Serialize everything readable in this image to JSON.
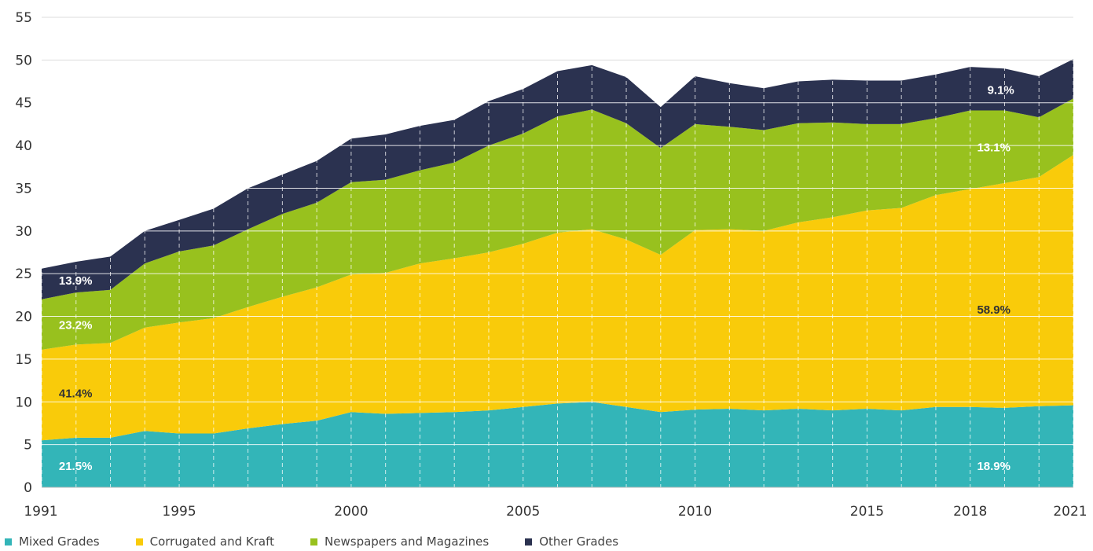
{
  "chart_data": {
    "type": "area",
    "stacked": true,
    "title": "",
    "xlabel": "",
    "ylabel": "",
    "x": [
      1991,
      1992,
      1993,
      1994,
      1995,
      1996,
      1997,
      1998,
      1999,
      2000,
      2001,
      2002,
      2003,
      2004,
      2005,
      2006,
      2007,
      2008,
      2009,
      2010,
      2011,
      2012,
      2013,
      2014,
      2015,
      2016,
      2017,
      2018,
      2019,
      2020,
      2021
    ],
    "x_ticks": [
      "1991",
      "1995",
      "2000",
      "2005",
      "2010",
      "2015",
      "2018",
      "2021"
    ],
    "y_ticks": [
      "0",
      "5",
      "10",
      "15",
      "20",
      "25",
      "30",
      "35",
      "40",
      "45",
      "50",
      "55"
    ],
    "ylim": [
      0,
      55
    ],
    "grid": true,
    "legend_position": "bottom-left",
    "series": [
      {
        "name": "Mixed Grades",
        "color": "#33b5b8",
        "values": [
          5.5,
          5.8,
          5.8,
          6.6,
          6.3,
          6.3,
          6.9,
          7.4,
          7.8,
          8.8,
          8.6,
          8.7,
          8.8,
          9.0,
          9.4,
          9.8,
          10.0,
          9.4,
          8.8,
          9.1,
          9.2,
          9.0,
          9.2,
          9.0,
          9.2,
          9.0,
          9.4,
          9.4,
          9.3,
          9.5,
          9.6
        ]
      },
      {
        "name": "Corrugated and Kraft",
        "color": "#f9cb0a",
        "values": [
          10.6,
          10.9,
          11.1,
          12.1,
          13.0,
          13.5,
          14.2,
          14.9,
          15.6,
          16.1,
          16.5,
          17.5,
          18.0,
          18.5,
          19.1,
          20.0,
          20.2,
          19.6,
          18.4,
          21.0,
          21.0,
          21.0,
          21.8,
          22.6,
          23.2,
          23.7,
          24.8,
          25.5,
          26.3,
          26.8,
          29.3
        ]
      },
      {
        "name": "Newspapers and Magazines",
        "color": "#98c11e",
        "values": [
          5.9,
          6.1,
          6.2,
          7.5,
          8.3,
          8.5,
          9.1,
          9.7,
          9.9,
          10.8,
          10.9,
          10.9,
          11.2,
          12.5,
          12.9,
          13.6,
          14.0,
          13.6,
          12.5,
          12.4,
          12.0,
          11.8,
          11.6,
          11.1,
          10.1,
          9.8,
          9.0,
          9.2,
          8.5,
          7.0,
          6.6
        ]
      },
      {
        "name": "Other Grades",
        "color": "#2b3250",
        "values": [
          3.6,
          3.6,
          3.9,
          3.8,
          3.7,
          4.3,
          4.8,
          4.6,
          4.9,
          5.1,
          5.3,
          5.2,
          5.0,
          5.2,
          5.2,
          5.3,
          5.2,
          5.4,
          4.8,
          5.6,
          5.1,
          4.9,
          4.9,
          5.0,
          5.1,
          5.1,
          5.1,
          5.1,
          4.9,
          4.8,
          4.6
        ]
      }
    ],
    "annotations": [
      {
        "text": "21.5%",
        "x": 1991.5,
        "y": 2.5,
        "color": "#ffffff"
      },
      {
        "text": "41.4%",
        "x": 1991.5,
        "y": 11.0,
        "color": "#333333"
      },
      {
        "text": "23.2%",
        "x": 1991.5,
        "y": 19.0,
        "color": "#ffffff"
      },
      {
        "text": "13.9%",
        "x": 1991.5,
        "y": 24.2,
        "color": "#ffffff"
      },
      {
        "text": "18.9%",
        "x": 2018.2,
        "y": 2.5,
        "color": "#ffffff"
      },
      {
        "text": "58.9%",
        "x": 2018.2,
        "y": 20.8,
        "color": "#333333"
      },
      {
        "text": "13.1%",
        "x": 2018.2,
        "y": 39.8,
        "color": "#ffffff"
      },
      {
        "text": "9.1%",
        "x": 2018.5,
        "y": 46.5,
        "color": "#ffffff"
      }
    ]
  }
}
